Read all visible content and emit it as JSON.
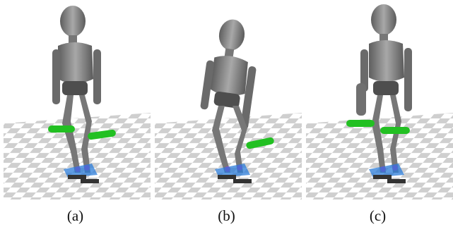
{
  "figure": {
    "panels": [
      {
        "id": "a",
        "caption": "(a)",
        "pose": "handles-low-forward"
      },
      {
        "id": "b",
        "caption": "(b)",
        "pose": "leaning-one-handle"
      },
      {
        "id": "c",
        "caption": "(c)",
        "pose": "handles-side-hold"
      }
    ]
  },
  "colors": {
    "robot_body": "#8a8a8a",
    "robot_dark": "#4a4a4a",
    "handle": "#22c022",
    "checker_dark": "#cfcfcf",
    "checker_light": "#ffffff",
    "contact_blue": "#2a7bd8",
    "contact_magenta": "#c030c0"
  }
}
